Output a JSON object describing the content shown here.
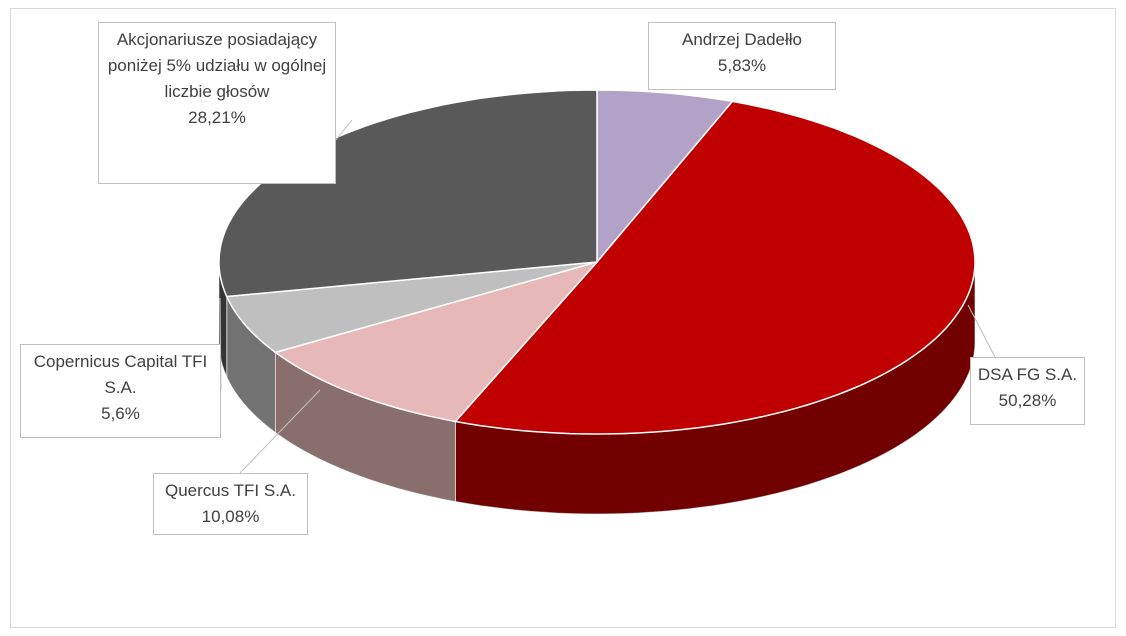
{
  "chart_data": {
    "type": "pie3d",
    "categories": [
      "Andrzej Dadełło",
      "DSA FG S.A.",
      "Quercus TFI S.A.",
      "Copernicus Capital TFI S.A.",
      "Akcjonariusze posiadający poniżej 5% udziału w ogólnej liczbie głosów"
    ],
    "values": [
      5.83,
      50.28,
      10.08,
      5.6,
      28.21
    ],
    "value_labels": [
      "5,83%",
      "50,28%",
      "10,08%",
      "5,6%",
      "28,21%"
    ],
    "colors": [
      "#b3a2c7",
      "#c00000",
      "#e6b8b7",
      "#bfbfbf",
      "#595959"
    ]
  }
}
